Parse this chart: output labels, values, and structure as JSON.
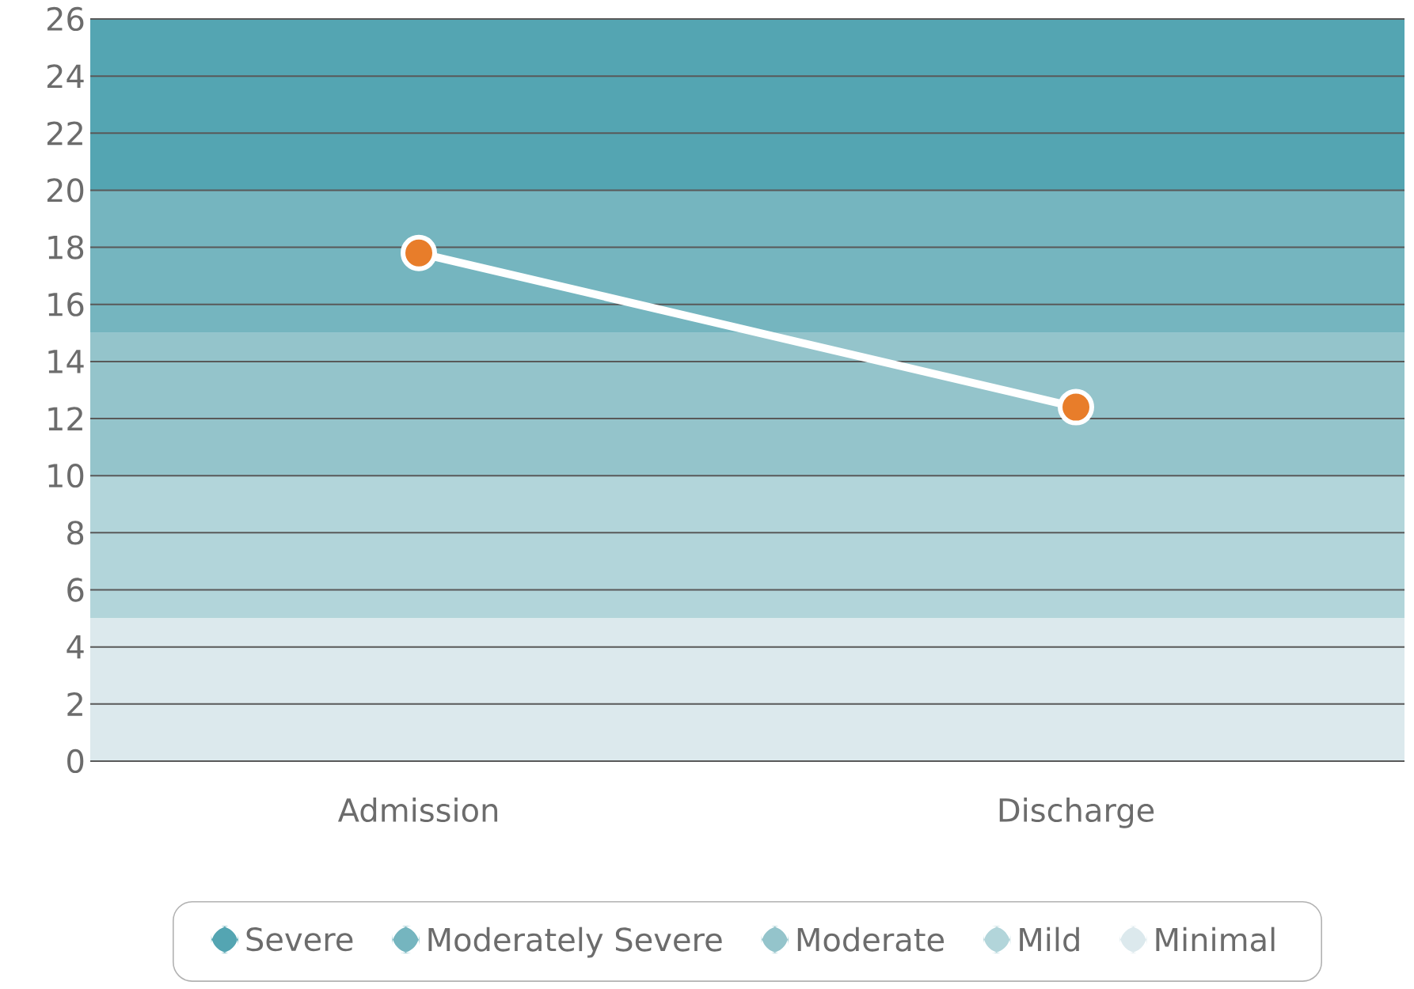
{
  "chart_data": {
    "type": "line",
    "categories": [
      "Admission",
      "Discharge"
    ],
    "series": [
      {
        "color": "#ffffff",
        "colors": [
          "#e87d2a",
          "#e87d2a"
        ],
        "values": [
          17.8,
          12.4
        ]
      }
    ],
    "ylim": [
      0,
      26
    ],
    "yticks": [
      0,
      2,
      4,
      6,
      8,
      10,
      12,
      14,
      16,
      18,
      20,
      22,
      24,
      26
    ],
    "grid": "y",
    "marker": "circle",
    "line_style": "solid",
    "legend": "bottom",
    "bands": [
      {
        "axis": "y",
        "from": 20,
        "to": 26,
        "label": "Severe",
        "color": "#54a5b2"
      },
      {
        "axis": "y",
        "from": 15,
        "to": 20,
        "label": "Moderately Severe",
        "color": "#75b5bf"
      },
      {
        "axis": "y",
        "from": 10,
        "to": 15,
        "label": "Moderate",
        "color": "#94c4cb"
      },
      {
        "axis": "y",
        "from": 5,
        "to": 10,
        "label": "Mild",
        "color": "#b2d5da"
      },
      {
        "axis": "y",
        "from": 0,
        "to": 5,
        "label": "Minimal",
        "color": "#dce9ed"
      }
    ]
  }
}
